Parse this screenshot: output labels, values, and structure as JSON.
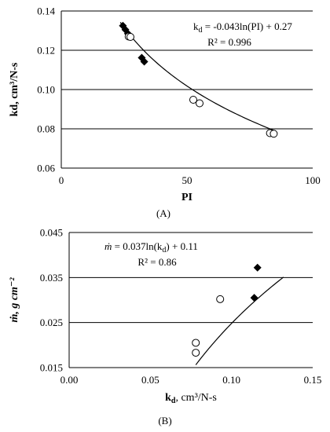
{
  "chart_data": [
    {
      "type": "scatter",
      "panel_label": "(A)",
      "xlabel": "PI",
      "ylabel": "kd, cm³/N-s",
      "xlim": [
        0,
        100
      ],
      "ylim": [
        0.06,
        0.14
      ],
      "x_ticks": [
        0,
        50,
        100
      ],
      "y_ticks": [
        0.06,
        0.08,
        0.1,
        0.12,
        0.14
      ],
      "x_tick_labels": [
        "0",
        "50",
        "100"
      ],
      "y_tick_labels": [
        "0.06",
        "0.08",
        "0.10",
        "0.12",
        "0.14"
      ],
      "gridlines": "horizontal",
      "series": [
        {
          "marker": "filled-diamond",
          "points": [
            [
              24.5,
              0.1325
            ],
            [
              25.5,
              0.1305
            ],
            [
              26.5,
              0.1285
            ],
            [
              32,
              0.1162
            ],
            [
              33,
              0.1142
            ]
          ]
        },
        {
          "marker": "open-circle",
          "points": [
            [
              26.8,
              0.127
            ],
            [
              27.5,
              0.1268
            ],
            [
              52.5,
              0.0948
            ],
            [
              55,
              0.093
            ],
            [
              83,
              0.0778
            ],
            [
              84.5,
              0.0775
            ]
          ]
        }
      ],
      "trendline": {
        "type": "log",
        "a": -0.043,
        "b": 0.27,
        "x_range": [
          23.5,
          85
        ]
      },
      "annotation": {
        "equation": "k",
        "sub": "d",
        "rest": " = -0.043ln(PI) + 0.27",
        "r2": "R² = 0.996"
      }
    },
    {
      "type": "scatter",
      "panel_label": "(B)",
      "xlabel_main": "k",
      "xlabel_sub": "d",
      "xlabel_unit": ", cm³/N-s",
      "ylabel": "ṁ, g cm⁻²",
      "xlim": [
        0.0,
        0.15
      ],
      "ylim": [
        0.015,
        0.045
      ],
      "x_ticks": [
        0.0,
        0.05,
        0.1,
        0.15
      ],
      "y_ticks": [
        0.015,
        0.025,
        0.035,
        0.045
      ],
      "x_tick_labels": [
        "0.00",
        "0.05",
        "0.10",
        "0.15"
      ],
      "y_tick_labels": [
        "0.015",
        "0.025",
        "0.035",
        "0.045"
      ],
      "gridlines": "horizontal",
      "series": [
        {
          "marker": "filled-diamond",
          "points": [
            [
              0.116,
              0.0372
            ],
            [
              0.114,
              0.0305
            ]
          ]
        },
        {
          "marker": "open-circle",
          "points": [
            [
              0.078,
              0.0205
            ],
            [
              0.078,
              0.0183
            ],
            [
              0.093,
              0.0302
            ]
          ]
        }
      ],
      "trendline": {
        "type": "log",
        "a": 0.037,
        "b": 0.11,
        "x_range": [
          0.078,
          0.132
        ]
      },
      "annotation": {
        "equation": "ṁ",
        "rest": " = 0.037ln(k",
        "sub": "d",
        "tail": ") + 0.11",
        "r2": "R² = 0.86"
      }
    }
  ]
}
